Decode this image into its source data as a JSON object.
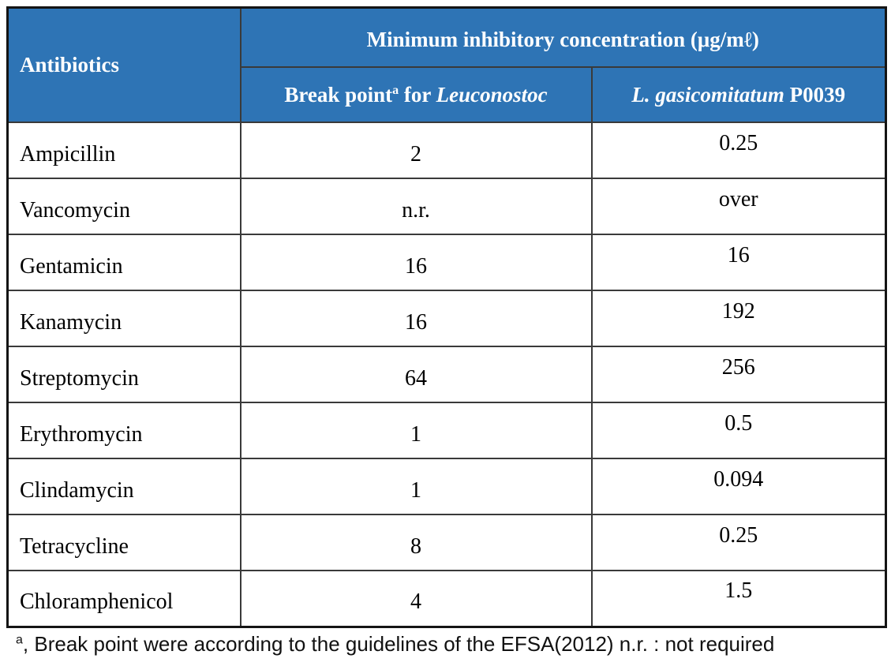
{
  "colors": {
    "header_bg": "#2e74b5",
    "header_text": "#ffffff",
    "body_text": "#000000",
    "inner_border": "#3a3a3a",
    "outer_border": "#141414"
  },
  "table": {
    "header": {
      "antibiotics": "Antibiotics",
      "mic_title": "Minimum inhibitory concentration (μg/mℓ)",
      "col2": {
        "text": "Break point",
        "sup": "a",
        "mid": " for ",
        "genus_italic": "Leuconostoc"
      },
      "col3": {
        "species_italic": "L. gasicomitatum",
        "strain_code": " P0039"
      }
    },
    "rows": [
      {
        "antibiotic": "Ampicillin",
        "breakpoint": "2",
        "mic": "0.25"
      },
      {
        "antibiotic": "Vancomycin",
        "breakpoint": "n.r.",
        "mic": "over"
      },
      {
        "antibiotic": "Gentamicin",
        "breakpoint": "16",
        "mic": "16"
      },
      {
        "antibiotic": "Kanamycin",
        "breakpoint": "16",
        "mic": "192"
      },
      {
        "antibiotic": "Streptomycin",
        "breakpoint": "64",
        "mic": "256"
      },
      {
        "antibiotic": "Erythromycin",
        "breakpoint": "1",
        "mic": "0.5"
      },
      {
        "antibiotic": "Clindamycin",
        "breakpoint": "1",
        "mic": "0.094"
      },
      {
        "antibiotic": "Tetracycline",
        "breakpoint": "8",
        "mic": "0.25"
      },
      {
        "antibiotic": "Chloramphenicol",
        "breakpoint": "4",
        "mic": "1.5"
      }
    ]
  },
  "footnote": {
    "sup": "a",
    "text": ", Break point were according to the guidelines of the EFSA(2012) n.r. : not required"
  }
}
